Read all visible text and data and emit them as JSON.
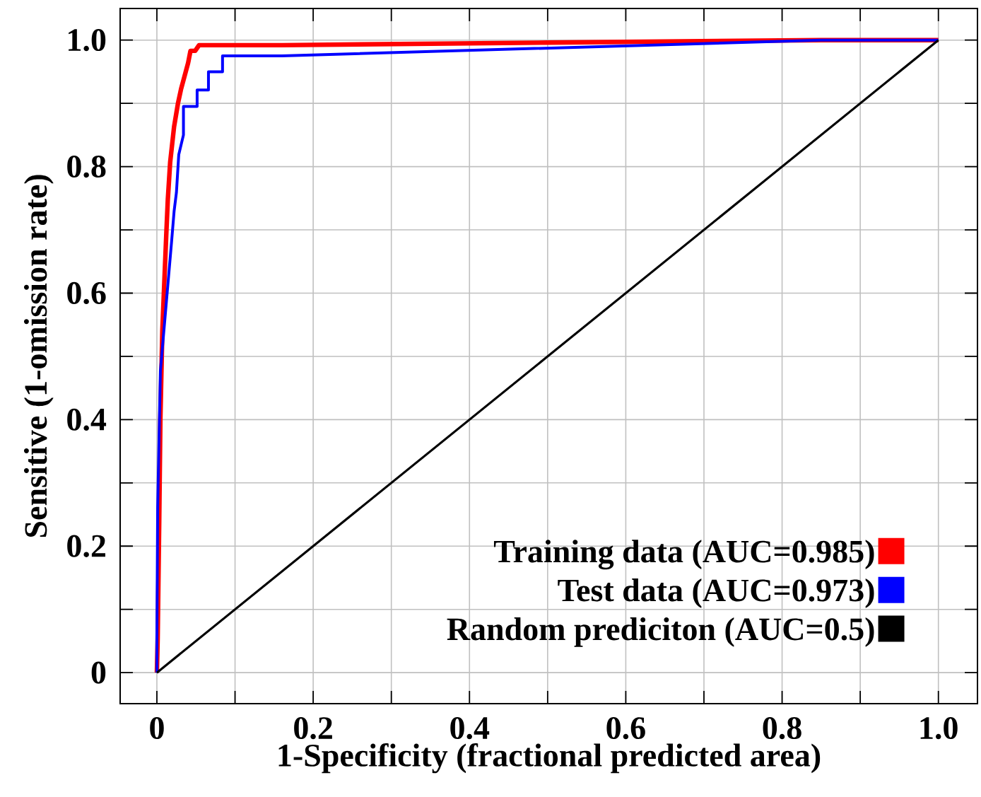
{
  "chart_data": {
    "type": "line",
    "xlabel": "1-Specificity (fractional predicted area)",
    "ylabel": "Sensitive (1-omission rate)",
    "xlim": [
      -0.047,
      1.05
    ],
    "ylim": [
      -0.049,
      1.05
    ],
    "xticks": [
      0,
      {
        "value": 0.1,
        "label": null
      },
      0.2,
      {
        "value": 0.3,
        "label": null
      },
      0.4,
      {
        "value": 0.5,
        "label": null
      },
      0.6,
      {
        "value": 0.7,
        "label": null
      },
      0.8,
      {
        "value": 0.9,
        "label": null
      },
      {
        "value": 1,
        "label": "1.0"
      }
    ],
    "yticks": [
      0,
      {
        "value": 0.1,
        "label": null
      },
      0.2,
      {
        "value": 0.3,
        "label": null
      },
      0.4,
      {
        "value": 0.5,
        "label": null
      },
      0.6,
      {
        "value": 0.7,
        "label": null
      },
      0.8,
      {
        "value": 0.9,
        "label": null
      },
      {
        "value": 1,
        "label": "1.0"
      }
    ],
    "grid": true,
    "legend": "bottom right",
    "marker": "none",
    "line_style": "solid",
    "series": [
      {
        "name": "Training data (AUC=0.985)",
        "color": "#ff0000",
        "x": [
          0,
          0.001,
          0.003,
          0.0045,
          0.007,
          0.012,
          0.014,
          0.017,
          0.022,
          0.027,
          0.031,
          0.04,
          0.043,
          0.049,
          0.054,
          0.16,
          0.5,
          0.85,
          1.0
        ],
        "values": [
          0,
          0.053,
          0.24,
          0.402,
          0.542,
          0.692,
          0.748,
          0.807,
          0.863,
          0.9,
          0.923,
          0.964,
          0.983,
          0.983,
          0.992,
          0.992,
          0.996,
          1.0,
          1.0
        ]
      },
      {
        "name": "Test data (AUC=0.973)",
        "color": "#0000ff",
        "x": [
          0,
          0,
          0.001,
          0.0045,
          0.019,
          0.022,
          0.025,
          0.028,
          0.034,
          0.034,
          0.0515,
          0.0515,
          0.066,
          0.066,
          0.084,
          0.084,
          0.16,
          0.85,
          1.0
        ],
        "values": [
          0,
          0.05,
          0.262,
          0.477,
          0.684,
          0.729,
          0.759,
          0.819,
          0.85,
          0.895,
          0.895,
          0.921,
          0.921,
          0.95,
          0.95,
          0.975,
          0.975,
          1.0,
          1.0
        ]
      },
      {
        "name": "Random prediciton (AUC=0.5)",
        "color": "#000000",
        "x": [
          0,
          1
        ],
        "values": [
          0,
          1
        ]
      }
    ]
  }
}
